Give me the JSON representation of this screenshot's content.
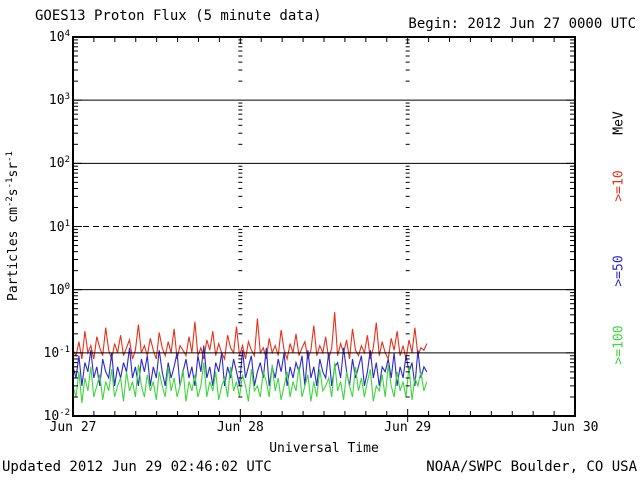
{
  "header": {
    "title": "GOES13 Proton Flux (5 minute data)",
    "begin": "Begin: 2012 Jun 27 0000 UTC"
  },
  "footer": {
    "updated": "Updated 2012 Jun 29 02:46:02 UTC",
    "org": "NOAA/SWPC Boulder, CO USA"
  },
  "axes": {
    "x_title": "Universal Time",
    "y_title_parts": [
      "Particles cm",
      "-2",
      "s",
      "-1",
      "sr",
      "-1"
    ],
    "x_tick_labels": [
      "Jun 27",
      "Jun 28",
      "Jun 29",
      "Jun 30"
    ],
    "y_tick_exponents": [
      4,
      3,
      2,
      1,
      0,
      -1,
      -2
    ]
  },
  "right_labels": {
    "unit": "MeV",
    "unit_color": "#000000"
  },
  "chart_data": {
    "type": "line",
    "title": "GOES13 Proton Flux (5 minute data)",
    "xlabel": "Universal Time",
    "ylabel": "Particles cm^-2 s^-1 sr^-1",
    "x_start": "2012 Jun 27 0000 UTC",
    "x_total_hours": 72,
    "data_end_hours": 50.75,
    "x_day_labels": [
      "Jun 27",
      "Jun 28",
      "Jun 29",
      "Jun 30"
    ],
    "y_log_min_exp": -2,
    "y_log_max_exp": 4,
    "solid_gridline_exponents": [
      3,
      2,
      0,
      -1
    ],
    "dashed_gridline_exponents": [
      1
    ],
    "grid": true,
    "legend_position": "right-rotated",
    "series": [
      {
        "name": "Protons >=10 MeV",
        "label": ">=10",
        "color": "#e93018",
        "label_center_y": 186,
        "values": [
          0.11,
          0.09,
          0.15,
          0.08,
          0.22,
          0.1,
          0.13,
          0.08,
          0.18,
          0.12,
          0.09,
          0.25,
          0.11,
          0.08,
          0.14,
          0.1,
          0.19,
          0.09,
          0.12,
          0.16,
          0.08,
          0.11,
          0.28,
          0.1,
          0.13,
          0.09,
          0.17,
          0.11,
          0.08,
          0.21,
          0.12,
          0.09,
          0.15,
          0.1,
          0.24,
          0.08,
          0.13,
          0.11,
          0.09,
          0.18,
          0.1,
          0.31,
          0.09,
          0.12,
          0.08,
          0.16,
          0.11,
          0.22,
          0.09,
          0.14,
          0.1,
          0.08,
          0.19,
          0.12,
          0.1,
          0.26,
          0.09,
          0.13,
          0.08,
          0.15,
          0.11,
          0.09,
          0.35,
          0.1,
          0.12,
          0.08,
          0.17,
          0.1,
          0.13,
          0.09,
          0.23,
          0.11,
          0.08,
          0.14,
          0.1,
          0.2,
          0.09,
          0.12,
          0.15,
          0.08,
          0.11,
          0.27,
          0.09,
          0.13,
          0.1,
          0.18,
          0.08,
          0.12,
          0.44,
          0.09,
          0.14,
          0.1,
          0.16,
          0.08,
          0.24,
          0.11,
          0.09,
          0.13,
          0.1,
          0.19,
          0.08,
          0.12,
          0.3,
          0.09,
          0.15,
          0.1,
          0.08,
          0.17,
          0.11,
          0.22,
          0.09,
          0.13,
          0.08,
          0.16,
          0.1,
          0.25,
          0.09,
          0.12,
          0.11,
          0.14
        ]
      },
      {
        "name": "Protons >=50 MeV",
        "label": ">=50",
        "color": "#2a2ac8",
        "label_center_y": 271,
        "values": [
          0.06,
          0.04,
          0.09,
          0.03,
          0.07,
          0.05,
          0.11,
          0.04,
          0.06,
          0.03,
          0.08,
          0.05,
          0.04,
          0.1,
          0.03,
          0.06,
          0.04,
          0.07,
          0.05,
          0.12,
          0.04,
          0.06,
          0.03,
          0.08,
          0.05,
          0.09,
          0.03,
          0.06,
          0.04,
          0.11,
          0.05,
          0.03,
          0.07,
          0.04,
          0.06,
          0.1,
          0.03,
          0.05,
          0.08,
          0.04,
          0.06,
          0.03,
          0.09,
          0.05,
          0.13,
          0.04,
          0.06,
          0.03,
          0.07,
          0.05,
          0.1,
          0.03,
          0.06,
          0.04,
          0.08,
          0.05,
          0.03,
          0.11,
          0.04,
          0.06,
          0.09,
          0.03,
          0.05,
          0.07,
          0.04,
          0.12,
          0.03,
          0.06,
          0.04,
          0.08,
          0.05,
          0.1,
          0.03,
          0.06,
          0.04,
          0.07,
          0.05,
          0.09,
          0.03,
          0.11,
          0.04,
          0.06,
          0.03,
          0.08,
          0.05,
          0.04,
          0.1,
          0.03,
          0.06,
          0.07,
          0.04,
          0.12,
          0.05,
          0.03,
          0.08,
          0.04,
          0.06,
          0.09,
          0.03,
          0.05,
          0.11,
          0.04,
          0.07,
          0.03,
          0.06,
          0.05,
          0.08,
          0.04,
          0.1,
          0.03,
          0.06,
          0.04,
          0.09,
          0.05,
          0.07,
          0.03,
          0.11,
          0.04,
          0.06,
          0.05
        ]
      },
      {
        "name": "Protons >=100 MeV",
        "label": ">=100",
        "color": "#3dd73d",
        "label_center_y": 345,
        "values": [
          0.03,
          0.02,
          0.05,
          0.016,
          0.04,
          0.025,
          0.06,
          0.02,
          0.03,
          0.045,
          0.018,
          0.035,
          0.025,
          0.055,
          0.02,
          0.03,
          0.04,
          0.017,
          0.05,
          0.025,
          0.035,
          0.02,
          0.065,
          0.03,
          0.02,
          0.045,
          0.025,
          0.035,
          0.018,
          0.05,
          0.03,
          0.02,
          0.06,
          0.025,
          0.04,
          0.02,
          0.03,
          0.055,
          0.017,
          0.035,
          0.025,
          0.045,
          0.02,
          0.03,
          0.07,
          0.02,
          0.035,
          0.025,
          0.05,
          0.018,
          0.03,
          0.04,
          0.02,
          0.06,
          0.025,
          0.035,
          0.02,
          0.045,
          0.03,
          0.017,
          0.055,
          0.025,
          0.03,
          0.02,
          0.05,
          0.035,
          0.02,
          0.065,
          0.025,
          0.04,
          0.018,
          0.03,
          0.05,
          0.02,
          0.035,
          0.025,
          0.06,
          0.02,
          0.03,
          0.045,
          0.017,
          0.035,
          0.02,
          0.055,
          0.025,
          0.03,
          0.04,
          0.02,
          0.07,
          0.025,
          0.035,
          0.018,
          0.05,
          0.03,
          0.02,
          0.06,
          0.025,
          0.04,
          0.02,
          0.035,
          0.055,
          0.017,
          0.03,
          0.025,
          0.045,
          0.02,
          0.065,
          0.03,
          0.02,
          0.05,
          0.025,
          0.035,
          0.02,
          0.06,
          0.018,
          0.04,
          0.03,
          0.05,
          0.025,
          0.035
        ]
      }
    ]
  }
}
